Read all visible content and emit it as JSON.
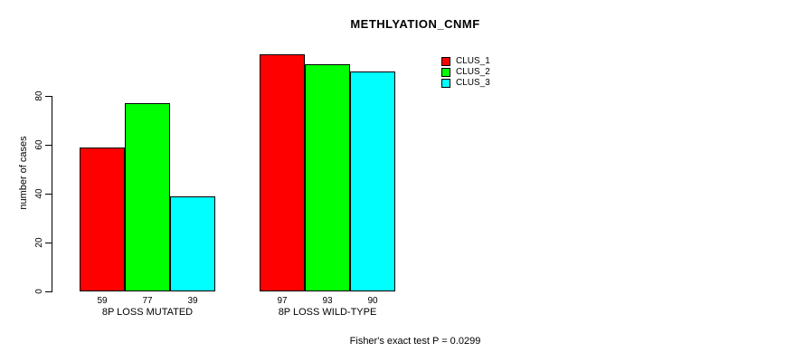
{
  "title": "METHLYATION_CNMF",
  "ylabel": "number of cases",
  "footer": "Fisher's exact test P = 0.0299",
  "chart_data": {
    "type": "bar",
    "title": "METHLYATION_CNMF",
    "xlabel": "",
    "ylabel": "number of cases",
    "categories": [
      "8P LOSS MUTATED",
      "8P LOSS WILD-TYPE"
    ],
    "series": [
      {
        "name": "CLUS_1",
        "color": "#ff0000",
        "values": [
          59,
          97
        ]
      },
      {
        "name": "CLUS_2",
        "color": "#00ff00",
        "values": [
          77,
          93
        ]
      },
      {
        "name": "CLUS_3",
        "color": "#00ffff",
        "values": [
          39,
          90
        ]
      }
    ],
    "bar_value_labels": [
      [
        59,
        77,
        39
      ],
      [
        97,
        93,
        90
      ]
    ],
    "yticks": [
      0,
      20,
      40,
      60,
      80
    ],
    "ylim": [
      0,
      97
    ],
    "grid": false,
    "legend_position": "top-right",
    "annotation": "Fisher's exact test P = 0.0299",
    "bar_border_color": "#000000",
    "axis_color": "#000000"
  }
}
